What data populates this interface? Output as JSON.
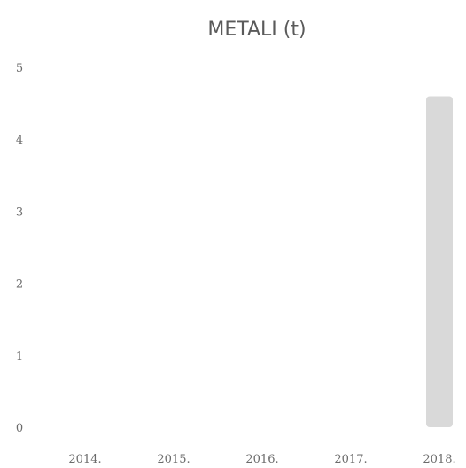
{
  "chart_data": {
    "type": "bar",
    "title": "METALI (t)",
    "categories": [
      "2014.",
      "2015.",
      "2016.",
      "2017.",
      "2018."
    ],
    "values": [
      0,
      0,
      0,
      0,
      4.6
    ],
    "ylim": [
      0,
      5
    ],
    "yticks": [
      "0",
      "1",
      "2",
      "3",
      "4",
      "5"
    ],
    "xlabel": "",
    "ylabel": "",
    "grid": false,
    "bar_color": "#d9d9d9"
  }
}
